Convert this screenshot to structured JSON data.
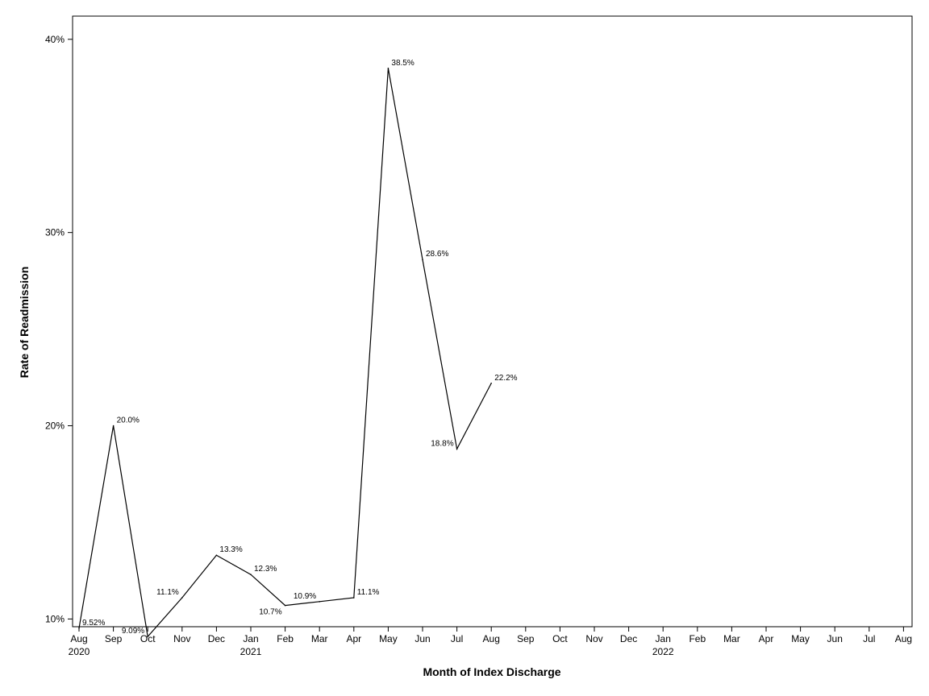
{
  "chart_data": {
    "type": "line",
    "title": "",
    "xlabel": "Month of Index Discharge",
    "ylabel": "Rate of Readmission",
    "ylim": [
      9.6,
      41.2
    ],
    "y_ticks": [
      10,
      20,
      30,
      40
    ],
    "y_tick_labels": [
      "10%",
      "20%",
      "30%",
      "40%"
    ],
    "x_ticks": [
      {
        "month": "Aug",
        "year": "2020"
      },
      {
        "month": "Sep",
        "year": ""
      },
      {
        "month": "Oct",
        "year": ""
      },
      {
        "month": "Nov",
        "year": ""
      },
      {
        "month": "Dec",
        "year": ""
      },
      {
        "month": "Jan",
        "year": "2021"
      },
      {
        "month": "Feb",
        "year": ""
      },
      {
        "month": "Mar",
        "year": ""
      },
      {
        "month": "Apr",
        "year": ""
      },
      {
        "month": "May",
        "year": ""
      },
      {
        "month": "Jun",
        "year": ""
      },
      {
        "month": "Jul",
        "year": ""
      },
      {
        "month": "Aug",
        "year": ""
      },
      {
        "month": "Sep",
        "year": ""
      },
      {
        "month": "Oct",
        "year": ""
      },
      {
        "month": "Nov",
        "year": ""
      },
      {
        "month": "Dec",
        "year": ""
      },
      {
        "month": "Jan",
        "year": "2022"
      },
      {
        "month": "Feb",
        "year": ""
      },
      {
        "month": "Mar",
        "year": ""
      },
      {
        "month": "Apr",
        "year": ""
      },
      {
        "month": "May",
        "year": ""
      },
      {
        "month": "Jun",
        "year": ""
      },
      {
        "month": "Jul",
        "year": ""
      },
      {
        "month": "Aug",
        "year": ""
      }
    ],
    "grid": false,
    "legend": "none",
    "series": [
      {
        "points": [
          {
            "x": "2020-08",
            "y": 9.52,
            "label": "9.52%",
            "label_pos": "right"
          },
          {
            "x": "2020-09",
            "y": 20.0,
            "label": "20.0%",
            "label_pos": "right"
          },
          {
            "x": "2020-10",
            "y": 9.09,
            "label": "9.09%",
            "label_pos": "left"
          },
          {
            "x": "2020-11",
            "y": 11.1,
            "label": "11.1%",
            "label_pos": "left"
          },
          {
            "x": "2020-12",
            "y": 13.3,
            "label": "13.3%",
            "label_pos": "right"
          },
          {
            "x": "2021-01",
            "y": 12.3,
            "label": "12.3%",
            "label_pos": "right"
          },
          {
            "x": "2021-02",
            "y": 10.7,
            "label": "10.7%",
            "label_pos": "below-left"
          },
          {
            "x": "2021-03",
            "y": 10.9,
            "label": "10.9%",
            "label_pos": "left"
          },
          {
            "x": "2021-04",
            "y": 11.1,
            "label": "11.1%",
            "label_pos": "right"
          },
          {
            "x": "2021-05",
            "y": 38.5,
            "label": "38.5%",
            "label_pos": "right"
          },
          {
            "x": "2021-06",
            "y": 28.6,
            "label": "28.6%",
            "label_pos": "right"
          },
          {
            "x": "2021-07",
            "y": 18.8,
            "label": "18.8%",
            "label_pos": "left"
          },
          {
            "x": "2021-08",
            "y": 22.2,
            "label": "22.2%",
            "label_pos": "right"
          }
        ]
      }
    ]
  }
}
